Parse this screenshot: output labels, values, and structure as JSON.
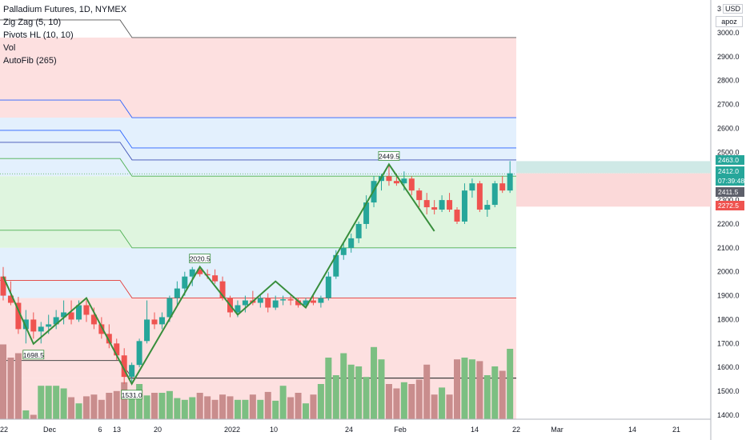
{
  "chart_data": {
    "type": "candlestick",
    "title": "Palladium Futures, 1D, NYMEX",
    "indicators": [
      "Zig Zag (5, 10)",
      "Pivots HL (10, 10)",
      "Vol",
      "AutoFib (265)"
    ],
    "currency": "USD",
    "scale_mode_label": "apoz",
    "top_left_counter": "3",
    "ylim": [
      1380,
      3070
    ],
    "y_ticks": [
      "3000.0",
      "2900.0",
      "2800.0",
      "2700.0",
      "2600.0",
      "2500.0",
      "2400.0",
      "2300.0",
      "2200.0",
      "2100.0",
      "2000.0",
      "1900.0",
      "1800.0",
      "1700.0",
      "1600.0",
      "1500.0",
      "1400.0"
    ],
    "x_ticks": [
      "22",
      "Dec",
      "6",
      "13",
      "20",
      "2022",
      "10",
      "24",
      "Feb",
      "14",
      "22",
      "Mar",
      "14",
      "21"
    ],
    "price_badges": [
      {
        "label": "2463.0",
        "color": "#26a69a"
      },
      {
        "label": "2412.0",
        "color": "#26a69a"
      },
      {
        "label": "07:39:48",
        "color": "#26a69a"
      },
      {
        "label": "2411.5",
        "color": "#5d606b"
      },
      {
        "label": "2272.5",
        "color": "#ef5350"
      }
    ],
    "zigzag_labels": [
      "1698.5",
      "1531.0",
      "2020.5",
      "2449.5"
    ],
    "fib_levels": [
      2980,
      2645,
      2518,
      2468,
      2400,
      2100,
      1890,
      1555
    ],
    "candles": [
      {
        "o": 1980,
        "h": 2020,
        "l": 1880,
        "c": 1900,
        "v": 0.85
      },
      {
        "o": 1900,
        "h": 1960,
        "l": 1860,
        "c": 1870,
        "v": 0.7
      },
      {
        "o": 1870,
        "h": 1895,
        "l": 1740,
        "c": 1760,
        "v": 0.75
      },
      {
        "o": 1760,
        "h": 1840,
        "l": 1700,
        "c": 1800,
        "v": 0.1
      },
      {
        "o": 1800,
        "h": 1830,
        "l": 1720,
        "c": 1750,
        "v": 0.05
      },
      {
        "o": 1750,
        "h": 1790,
        "l": 1700,
        "c": 1770,
        "v": 0.38
      },
      {
        "o": 1770,
        "h": 1820,
        "l": 1740,
        "c": 1780,
        "v": 0.38
      },
      {
        "o": 1780,
        "h": 1840,
        "l": 1760,
        "c": 1810,
        "v": 0.38
      },
      {
        "o": 1810,
        "h": 1880,
        "l": 1780,
        "c": 1830,
        "v": 0.35
      },
      {
        "o": 1830,
        "h": 1880,
        "l": 1780,
        "c": 1800,
        "v": 0.25
      },
      {
        "o": 1800,
        "h": 1880,
        "l": 1790,
        "c": 1860,
        "v": 0.18
      },
      {
        "o": 1860,
        "h": 1880,
        "l": 1790,
        "c": 1820,
        "v": 0.26
      },
      {
        "o": 1820,
        "h": 1850,
        "l": 1760,
        "c": 1780,
        "v": 0.28
      },
      {
        "o": 1780,
        "h": 1810,
        "l": 1720,
        "c": 1740,
        "v": 0.22
      },
      {
        "o": 1740,
        "h": 1780,
        "l": 1680,
        "c": 1700,
        "v": 0.3
      },
      {
        "o": 1700,
        "h": 1720,
        "l": 1630,
        "c": 1650,
        "v": 0.32
      },
      {
        "o": 1650,
        "h": 1680,
        "l": 1531,
        "c": 1560,
        "v": 0.42
      },
      {
        "o": 1560,
        "h": 1620,
        "l": 1540,
        "c": 1610,
        "v": 0.23
      },
      {
        "o": 1610,
        "h": 1720,
        "l": 1600,
        "c": 1710,
        "v": 0.4
      },
      {
        "o": 1710,
        "h": 1880,
        "l": 1700,
        "c": 1800,
        "v": 0.27
      },
      {
        "o": 1800,
        "h": 1830,
        "l": 1760,
        "c": 1780,
        "v": 0.3
      },
      {
        "o": 1780,
        "h": 1830,
        "l": 1760,
        "c": 1810,
        "v": 0.3
      },
      {
        "o": 1810,
        "h": 1900,
        "l": 1790,
        "c": 1890,
        "v": 0.32
      },
      {
        "o": 1890,
        "h": 1960,
        "l": 1860,
        "c": 1930,
        "v": 0.24
      },
      {
        "o": 1930,
        "h": 2000,
        "l": 1900,
        "c": 1980,
        "v": 0.22
      },
      {
        "o": 1980,
        "h": 2020,
        "l": 1940,
        "c": 2010,
        "v": 0.25
      },
      {
        "o": 2010,
        "h": 2020,
        "l": 1980,
        "c": 1990,
        "v": 0.3
      },
      {
        "o": 1990,
        "h": 2010,
        "l": 1970,
        "c": 1985,
        "v": 0.26
      },
      {
        "o": 1985,
        "h": 2010,
        "l": 1950,
        "c": 1960,
        "v": 0.22
      },
      {
        "o": 1960,
        "h": 1980,
        "l": 1880,
        "c": 1890,
        "v": 0.28
      },
      {
        "o": 1890,
        "h": 1900,
        "l": 1810,
        "c": 1830,
        "v": 0.26
      },
      {
        "o": 1830,
        "h": 1880,
        "l": 1810,
        "c": 1860,
        "v": 0.22
      },
      {
        "o": 1860,
        "h": 1900,
        "l": 1830,
        "c": 1880,
        "v": 0.22
      },
      {
        "o": 1880,
        "h": 1920,
        "l": 1860,
        "c": 1870,
        "v": 0.28
      },
      {
        "o": 1870,
        "h": 1900,
        "l": 1850,
        "c": 1890,
        "v": 0.22
      },
      {
        "o": 1890,
        "h": 1910,
        "l": 1830,
        "c": 1850,
        "v": 0.31
      },
      {
        "o": 1850,
        "h": 1900,
        "l": 1840,
        "c": 1880,
        "v": 0.21
      },
      {
        "o": 1880,
        "h": 1900,
        "l": 1860,
        "c": 1885,
        "v": 0.38
      },
      {
        "o": 1885,
        "h": 1900,
        "l": 1860,
        "c": 1880,
        "v": 0.25
      },
      {
        "o": 1880,
        "h": 1890,
        "l": 1850,
        "c": 1860,
        "v": 0.3
      },
      {
        "o": 1860,
        "h": 1890,
        "l": 1850,
        "c": 1880,
        "v": 0.18
      },
      {
        "o": 1880,
        "h": 1900,
        "l": 1860,
        "c": 1870,
        "v": 0.28
      },
      {
        "o": 1870,
        "h": 1900,
        "l": 1850,
        "c": 1890,
        "v": 0.4
      },
      {
        "o": 1890,
        "h": 2000,
        "l": 1880,
        "c": 1980,
        "v": 0.7
      },
      {
        "o": 1980,
        "h": 2090,
        "l": 1970,
        "c": 2070,
        "v": 0.5
      },
      {
        "o": 2070,
        "h": 2120,
        "l": 2050,
        "c": 2100,
        "v": 0.75
      },
      {
        "o": 2100,
        "h": 2160,
        "l": 2080,
        "c": 2140,
        "v": 0.62
      },
      {
        "o": 2140,
        "h": 2210,
        "l": 2120,
        "c": 2200,
        "v": 0.6
      },
      {
        "o": 2200,
        "h": 2320,
        "l": 2180,
        "c": 2290,
        "v": 0.48
      },
      {
        "o": 2290,
        "h": 2400,
        "l": 2270,
        "c": 2380,
        "v": 0.82
      },
      {
        "o": 2380,
        "h": 2410,
        "l": 2340,
        "c": 2400,
        "v": 0.68
      },
      {
        "o": 2400,
        "h": 2449.5,
        "l": 2360,
        "c": 2380,
        "v": 0.4
      },
      {
        "o": 2380,
        "h": 2410,
        "l": 2360,
        "c": 2370,
        "v": 0.35
      },
      {
        "o": 2370,
        "h": 2420,
        "l": 2340,
        "c": 2390,
        "v": 0.42
      },
      {
        "o": 2390,
        "h": 2400,
        "l": 2320,
        "c": 2340,
        "v": 0.4
      },
      {
        "o": 2340,
        "h": 2350,
        "l": 2270,
        "c": 2300,
        "v": 0.45
      },
      {
        "o": 2300,
        "h": 2330,
        "l": 2240,
        "c": 2270,
        "v": 0.62
      },
      {
        "o": 2270,
        "h": 2300,
        "l": 2240,
        "c": 2260,
        "v": 0.28
      },
      {
        "o": 2260,
        "h": 2320,
        "l": 2250,
        "c": 2300,
        "v": 0.36
      },
      {
        "o": 2300,
        "h": 2330,
        "l": 2250,
        "c": 2260,
        "v": 0.28
      },
      {
        "o": 2260,
        "h": 2270,
        "l": 2200,
        "c": 2210,
        "v": 0.68
      },
      {
        "o": 2210,
        "h": 2370,
        "l": 2200,
        "c": 2340,
        "v": 0.7
      },
      {
        "o": 2340,
        "h": 2390,
        "l": 2310,
        "c": 2370,
        "v": 0.68
      },
      {
        "o": 2370,
        "h": 2380,
        "l": 2250,
        "c": 2260,
        "v": 0.66
      },
      {
        "o": 2260,
        "h": 2300,
        "l": 2230,
        "c": 2280,
        "v": 0.5
      },
      {
        "o": 2280,
        "h": 2380,
        "l": 2270,
        "c": 2370,
        "v": 0.6
      },
      {
        "o": 2370,
        "h": 2400,
        "l": 2330,
        "c": 2340,
        "v": 0.55
      },
      {
        "o": 2340,
        "h": 2463,
        "l": 2330,
        "c": 2412,
        "v": 0.8
      }
    ]
  }
}
